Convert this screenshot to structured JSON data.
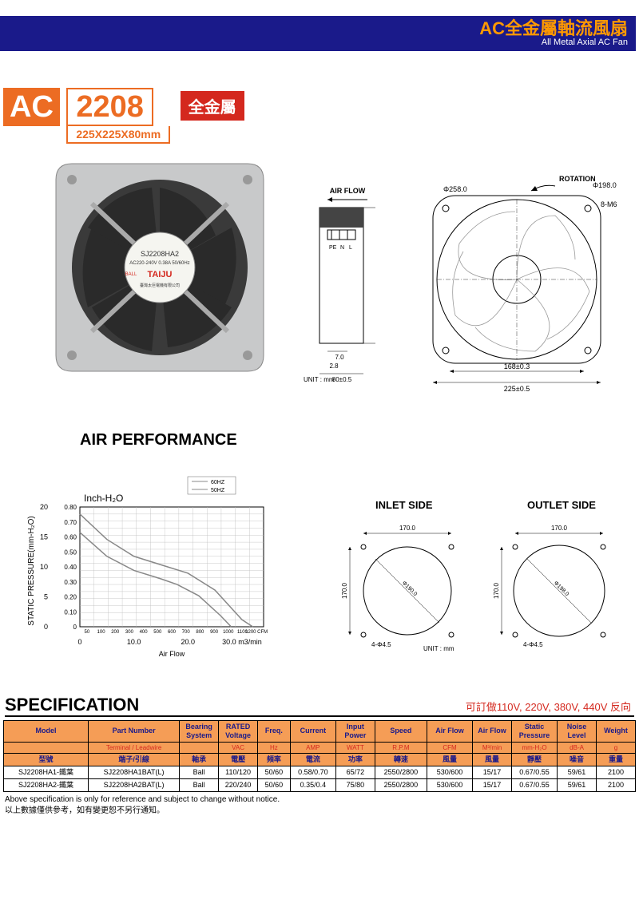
{
  "header": {
    "title_cn": "AC全金屬軸流風扇",
    "title_en": "All Metal Axial AC Fan"
  },
  "model": {
    "prefix": "AC",
    "number": "2208",
    "dimensions": "225X225X80mm",
    "badge": "全金屬",
    "label_model": "SJ2208HA2",
    "label_spec": "AC220-240V 0.38A 50/60Hz",
    "brand": "TAIJU",
    "brand_sub": "臺灣太巨電機有限公司",
    "ball": "BALL"
  },
  "drawings": {
    "airflow": "AIR FLOW",
    "rotation": "ROTATION",
    "unit": "UNIT : mm",
    "phi258": "Φ258.0",
    "phi198": "Φ198.0",
    "m8": "8-M6",
    "d168": "168±0.3",
    "d225": "225±0.5",
    "d80": "80±0.5",
    "d70": "7.0",
    "d28": "2.8",
    "pe": "PE",
    "n": "N",
    "l": "L"
  },
  "sections": {
    "air_perf": "AIR PERFORMANCE",
    "inlet": "INLET SIDE",
    "outlet": "OUTLET SIDE",
    "spec": "SPECIFICATION"
  },
  "chart": {
    "y_label": "STATIC PRESSURE(mm-H₂O)",
    "x_label": "Air Flow",
    "inch_label": "Inch-H₂O",
    "legend60": "60HZ",
    "legend50": "50HZ",
    "y_ticks_mm": [
      "20",
      "15",
      "10",
      "5",
      "0"
    ],
    "y_ticks_in": [
      "0.80",
      "0.70",
      "0.60",
      "0.50",
      "0.40",
      "0.30",
      "0.20",
      "0.10",
      "0"
    ],
    "x_ticks_m3": [
      "0",
      "10.0",
      "20.0",
      "30.0 m3/min"
    ],
    "x_ticks_cfm": [
      "50",
      "100",
      "200",
      "300",
      "400",
      "500",
      "600",
      "700",
      "800",
      "900",
      "1000",
      "1100",
      "1200 CFM"
    ],
    "bg": "#ffffff",
    "grid": "#000000",
    "fine_grid": "#bbbbbb",
    "line_c": "#888888",
    "series60": [
      [
        0,
        0.8
      ],
      [
        5,
        0.62
      ],
      [
        10,
        0.5
      ],
      [
        15,
        0.44
      ],
      [
        20,
        0.38
      ],
      [
        25,
        0.26
      ],
      [
        30,
        0.05
      ],
      [
        32,
        0
      ]
    ],
    "series50": [
      [
        0,
        0.67
      ],
      [
        5,
        0.5
      ],
      [
        10,
        0.4
      ],
      [
        15,
        0.34
      ],
      [
        18,
        0.3
      ],
      [
        22,
        0.22
      ],
      [
        26,
        0.08
      ],
      [
        28,
        0
      ]
    ]
  },
  "inlet": {
    "w": "170.0",
    "h": "170.0",
    "dia": "Φ190.0",
    "holes": "4-Φ4.5",
    "unit": "UNIT : mm"
  },
  "outlet": {
    "w": "170.0",
    "h": "170.0",
    "dia": "Φ198.0",
    "holes": "4-Φ4.5"
  },
  "spec": {
    "note": "可訂做110V, 220V, 380V, 440V 反向",
    "head_en": [
      "Model",
      "Part Number",
      "Bearing System",
      "RATED Voltage",
      "Freq.",
      "Current",
      "Input Power",
      "Speed",
      "Air Flow",
      "Air Flow",
      "Static Pressure",
      "Noise Level",
      "Weight"
    ],
    "head_sub": [
      "",
      "Terminal / Leadwire",
      "",
      "VAC",
      "Hz",
      "AMP",
      "WATT",
      "R.P.M",
      "CFM",
      "M³/min",
      "mm-H₂O",
      "dB-A",
      "g"
    ],
    "head_cn": [
      "型號",
      "端子/引線",
      "軸承",
      "電壓",
      "頻率",
      "電流",
      "功率",
      "轉速",
      "風量",
      "風量",
      "靜壓",
      "噪音",
      "重量"
    ],
    "rows": [
      [
        "SJ2208HA1-鐵葉",
        "SJ2208HA1BAT(L)",
        "Ball",
        "110/120",
        "50/60",
        "0.58/0.70",
        "65/72",
        "2550/2800",
        "530/600",
        "15/17",
        "0.67/0.55",
        "59/61",
        "2100"
      ],
      [
        "SJ2208HA2-鐵葉",
        "SJ2208HA2BAT(L)",
        "Ball",
        "220/240",
        "50/60",
        "0.35/0.4",
        "75/80",
        "2550/2800",
        "530/600",
        "15/17",
        "0.67/0.55",
        "59/61",
        "2100"
      ]
    ]
  },
  "footer": {
    "en": "Above specification is only for reference and subject to change without notice.",
    "cn": "以上數據僅供參考，如有變更恕不另行通知。"
  },
  "colors": {
    "blue": "#1a1a8a",
    "orange": "#ec6c23",
    "red": "#d4281e",
    "table_bg": "#f59d56"
  }
}
